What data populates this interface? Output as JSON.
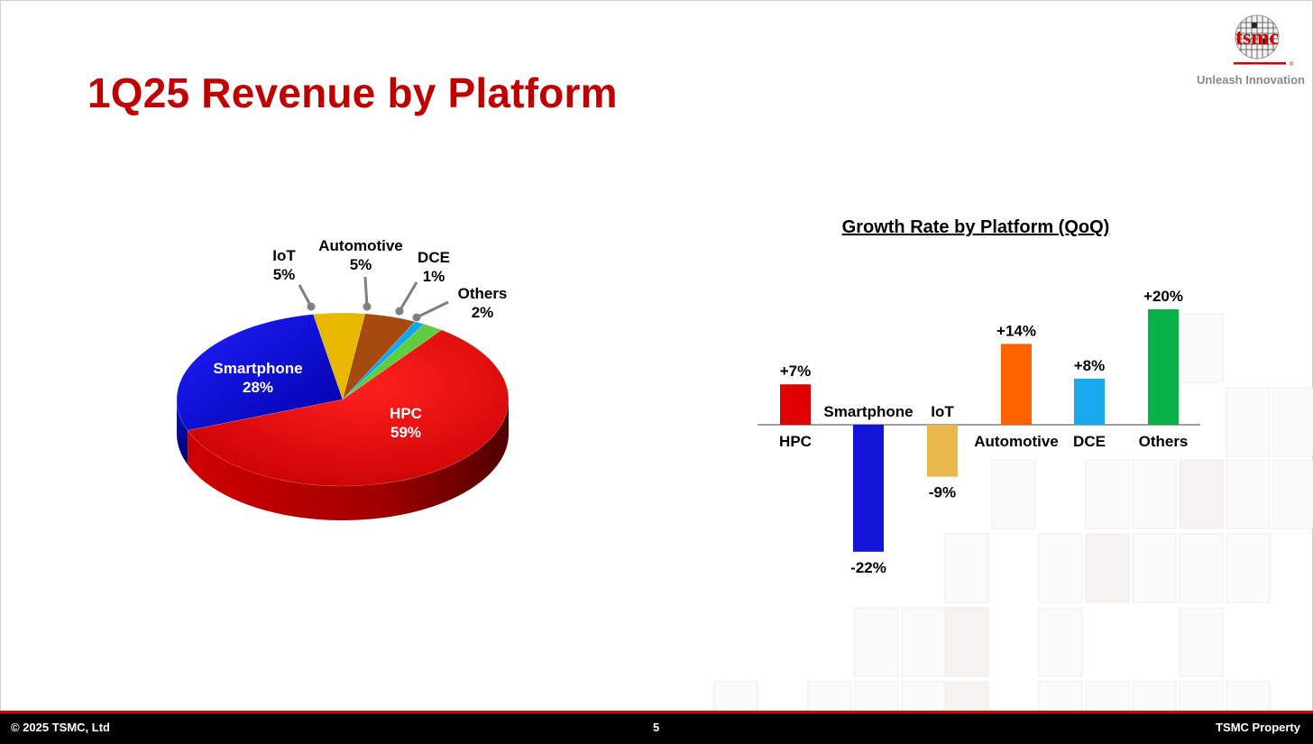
{
  "slide": {
    "title": "1Q25 Revenue by Platform",
    "logo_text": "tsmc",
    "tagline": "Unleash Innovation",
    "footer_left": "© 2025 TSMC, Ltd",
    "page_number": "5",
    "footer_right": "TSMC Property",
    "accent_color": "#c00000"
  },
  "chart_data": [
    {
      "type": "pie",
      "title": "",
      "slices": [
        {
          "label": "HPC",
          "value": 59,
          "display": "59%",
          "color": "#e00000"
        },
        {
          "label": "Smartphone",
          "value": 28,
          "display": "28%",
          "color": "#1010e0"
        },
        {
          "label": "IoT",
          "value": 5,
          "display": "5%",
          "color": "#e8b800"
        },
        {
          "label": "Automotive",
          "value": 5,
          "display": "5%",
          "color": "#a64a10"
        },
        {
          "label": "DCE",
          "value": 1,
          "display": "1%",
          "color": "#10a8f0"
        },
        {
          "label": "Others",
          "value": 2,
          "display": "2%",
          "color": "#60cc40"
        }
      ]
    },
    {
      "type": "bar",
      "title": "Growth Rate by Platform (QoQ)",
      "categories": [
        "HPC",
        "Smartphone",
        "IoT",
        "Automotive",
        "DCE",
        "Others"
      ],
      "values": [
        7,
        -22,
        -9,
        14,
        8,
        20
      ],
      "value_labels": [
        "+7%",
        "-22%",
        "-9%",
        "+14%",
        "+8%",
        "+20%"
      ],
      "colors": [
        "#e00000",
        "#1414d8",
        "#e8b84a",
        "#ff6000",
        "#18a8ec",
        "#08b048"
      ],
      "ylim": [
        -22,
        20
      ]
    }
  ]
}
